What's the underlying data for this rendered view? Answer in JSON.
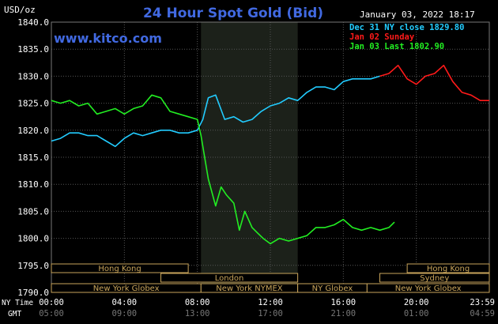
{
  "header": {
    "title": "24 Hour Spot Gold (Bid)",
    "unit": "USD/oz",
    "timestamp": "January 03, 2022 18:17",
    "website": "www.kitco.com"
  },
  "legend": [
    {
      "label": "Dec 31 NY close 1829.80",
      "color": "#22ccff"
    },
    {
      "label": "Jan 02 Sunday",
      "color": "#ff1a1a"
    },
    {
      "label": "Jan 03 Last 1802.90",
      "color": "#22ee22"
    }
  ],
  "axis": {
    "y_ticks": [
      "1840.0",
      "1835.0",
      "1830.0",
      "1825.0",
      "1820.0",
      "1815.0",
      "1810.0",
      "1805.0",
      "1800.0",
      "1795.0",
      "1790.0"
    ],
    "x_ticks_ny": [
      "00:00",
      "04:00",
      "08:00",
      "12:00",
      "16:00",
      "20:00",
      "23:59"
    ],
    "x_ticks_gmt": [
      "05:00",
      "09:00",
      "13:00",
      "17:00",
      "21:00",
      "01:00",
      "04:59"
    ],
    "ny_time_label": "NY Time",
    "gmt_label": "GMT"
  },
  "sessions": [
    {
      "label": "Hong Kong",
      "start": 0,
      "end": 7.5
    },
    {
      "label": "Hong Kong",
      "start": 19.5,
      "end": 24
    },
    {
      "label": "London",
      "start": 6,
      "end": 13.5
    },
    {
      "label": "Sydney",
      "start": 18,
      "end": 24
    },
    {
      "label": "New York Globex",
      "start": 0,
      "end": 8.2
    },
    {
      "label": "New York NYMEX",
      "start": 8.2,
      "end": 13.5
    },
    {
      "label": "NY Globex",
      "start": 13.5,
      "end": 17.3
    },
    {
      "label": "New York Globex",
      "start": 17.3,
      "end": 24
    }
  ],
  "chart_data": {
    "type": "line",
    "title": "24 Hour Spot Gold (Bid)",
    "ylabel": "USD/oz",
    "xlabel": "NY Time",
    "xlim": [
      0,
      24
    ],
    "ylim": [
      1790,
      1840
    ],
    "highlight_range": [
      8.2,
      13.5
    ],
    "grid": true,
    "series": [
      {
        "name": "Dec 31 NY close 1829.80",
        "color": "#22ccff",
        "x": [
          0,
          0.5,
          1,
          1.5,
          2,
          2.5,
          3,
          3.5,
          4,
          4.5,
          5,
          5.5,
          6,
          6.5,
          7,
          7.5,
          8,
          8.3,
          8.6,
          9,
          9.5,
          10,
          10.5,
          11,
          11.5,
          12,
          12.5,
          13,
          13.5,
          14,
          14.5,
          15,
          15.5,
          16,
          16.5,
          17,
          17.5,
          18
        ],
        "y": [
          1818,
          1818.5,
          1819.5,
          1819.5,
          1819,
          1819,
          1818,
          1817,
          1818.5,
          1819.5,
          1819,
          1819.5,
          1820,
          1820,
          1819.5,
          1819.5,
          1820,
          1822,
          1826,
          1826.5,
          1822,
          1822.5,
          1821.5,
          1822,
          1823.5,
          1824.5,
          1825,
          1826,
          1825.5,
          1827,
          1828,
          1828,
          1827.5,
          1829,
          1829.5,
          1829.5,
          1829.5,
          1830
        ]
      },
      {
        "name": "Jan 02 Sunday",
        "color": "#ff1a1a",
        "x": [
          18,
          18.5,
          19,
          19.5,
          20,
          20.5,
          21,
          21.5,
          22,
          22.5,
          23,
          23.5,
          24
        ],
        "y": [
          1830,
          1830.5,
          1832,
          1829.5,
          1828.5,
          1830,
          1830.5,
          1832,
          1829,
          1827,
          1826.5,
          1825.5,
          1825.5
        ]
      },
      {
        "name": "Jan 03 Last 1802.90",
        "color": "#22ee22",
        "x": [
          0,
          0.5,
          1,
          1.5,
          2,
          2.5,
          3,
          3.5,
          4,
          4.5,
          5,
          5.5,
          6,
          6.5,
          7,
          7.5,
          8,
          8.2,
          8.4,
          8.6,
          9,
          9.3,
          9.6,
          10,
          10.3,
          10.6,
          11,
          11.3,
          11.6,
          12,
          12.5,
          13,
          13.5,
          14,
          14.5,
          15,
          15.5,
          16,
          16.5,
          17,
          17.5,
          18,
          18.5,
          18.8
        ],
        "y": [
          1825.5,
          1825,
          1825.5,
          1824.5,
          1825,
          1823,
          1823.5,
          1824,
          1823,
          1824,
          1824.5,
          1826.5,
          1826,
          1823.5,
          1823,
          1822.5,
          1822,
          1819,
          1815,
          1811,
          1806,
          1809.5,
          1808,
          1806.5,
          1801.5,
          1805,
          1802,
          1801,
          1800,
          1799,
          1800,
          1799.5,
          1800,
          1800.5,
          1802,
          1802,
          1802.5,
          1803.5,
          1802,
          1801.5,
          1802,
          1801.5,
          1802,
          1803
        ]
      }
    ]
  }
}
